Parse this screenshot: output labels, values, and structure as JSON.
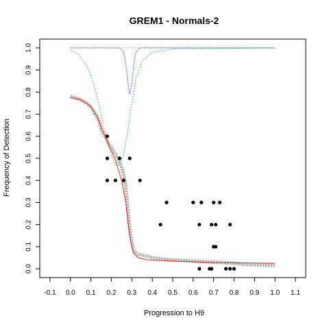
{
  "chart_data": {
    "type": "scatter",
    "title": "GREM1 - Normals-2",
    "xlabel": "Progression to H9",
    "ylabel": "Frequency of Detection",
    "xlim": [
      -0.15,
      1.15
    ],
    "ylim": [
      -0.04,
      1.04
    ],
    "x_ticks": [
      "-0.1",
      "0.0",
      "0.1",
      "0.2",
      "0.3",
      "0.4",
      "0.5",
      "0.6",
      "0.7",
      "0.8",
      "0.9",
      "1.0",
      "1.1"
    ],
    "y_ticks": [
      "0.0",
      "0.1",
      "0.2",
      "0.3",
      "0.4",
      "0.5",
      "0.6",
      "0.7",
      "0.8",
      "0.9",
      "1.0"
    ],
    "grid": false,
    "legend": "none",
    "colors": {
      "gray_band": "#b8b8b8",
      "points": "#000000",
      "fit": "#e8231f",
      "green_curve": "#2ecc40",
      "blue_curve": "#3b3bd6",
      "light_blue_curve": "#88c0e0"
    },
    "series": [
      {
        "kind": "band",
        "values": [
          [
            0.0,
            0.78
          ],
          [
            0.02,
            0.775
          ],
          [
            0.04,
            0.77
          ],
          [
            0.06,
            0.76
          ],
          [
            0.08,
            0.75
          ],
          [
            0.1,
            0.73
          ],
          [
            0.11,
            0.72
          ],
          [
            0.12,
            0.7
          ],
          [
            0.13,
            0.69
          ],
          [
            0.14,
            0.67
          ],
          [
            0.15,
            0.63
          ],
          [
            0.16,
            0.61
          ],
          [
            0.17,
            0.6
          ],
          [
            0.18,
            0.58
          ],
          [
            0.19,
            0.56
          ],
          [
            0.2,
            0.55
          ],
          [
            0.21,
            0.53
          ],
          [
            0.22,
            0.52
          ],
          [
            0.23,
            0.5
          ],
          [
            0.24,
            0.48
          ],
          [
            0.25,
            0.46
          ],
          [
            0.26,
            0.43
          ],
          [
            0.27,
            0.38
          ],
          [
            0.28,
            0.27
          ],
          [
            0.29,
            0.18
          ],
          [
            0.3,
            0.12
          ],
          [
            0.31,
            0.08
          ],
          [
            0.33,
            0.065
          ],
          [
            0.36,
            0.06
          ],
          [
            0.4,
            0.05
          ],
          [
            0.45,
            0.045
          ],
          [
            0.5,
            0.04
          ],
          [
            0.55,
            0.038
          ],
          [
            0.6,
            0.035
          ],
          [
            0.65,
            0.032
          ],
          [
            0.7,
            0.03
          ],
          [
            0.75,
            0.028
          ],
          [
            0.8,
            0.025
          ],
          [
            0.85,
            0.02
          ],
          [
            0.9,
            0.018
          ],
          [
            0.95,
            0.016
          ],
          [
            1.0,
            0.015
          ]
        ]
      },
      {
        "kind": "points",
        "values": [
          [
            0.18,
            0.6
          ],
          [
            0.18,
            0.5
          ],
          [
            0.24,
            0.5
          ],
          [
            0.29,
            0.5
          ],
          [
            0.18,
            0.4
          ],
          [
            0.22,
            0.4
          ],
          [
            0.26,
            0.4
          ],
          [
            0.34,
            0.4
          ],
          [
            0.47,
            0.3
          ],
          [
            0.6,
            0.3
          ],
          [
            0.64,
            0.3
          ],
          [
            0.7,
            0.3
          ],
          [
            0.73,
            0.3
          ],
          [
            0.44,
            0.2
          ],
          [
            0.63,
            0.2
          ],
          [
            0.69,
            0.2
          ],
          [
            0.71,
            0.2
          ],
          [
            0.78,
            0.2
          ],
          [
            0.7,
            0.1
          ],
          [
            0.71,
            0.1
          ],
          [
            0.63,
            0.0
          ],
          [
            0.68,
            0.0
          ],
          [
            0.69,
            0.0
          ],
          [
            0.76,
            0.0
          ],
          [
            0.78,
            0.0
          ],
          [
            0.8,
            0.0
          ]
        ]
      },
      {
        "kind": "fit",
        "values": [
          [
            0.0,
            0.775
          ],
          [
            0.05,
            0.765
          ],
          [
            0.1,
            0.735
          ],
          [
            0.13,
            0.69
          ],
          [
            0.16,
            0.62
          ],
          [
            0.19,
            0.555
          ],
          [
            0.22,
            0.49
          ],
          [
            0.25,
            0.4
          ],
          [
            0.27,
            0.3
          ],
          [
            0.28,
            0.22
          ],
          [
            0.29,
            0.15
          ],
          [
            0.3,
            0.1
          ],
          [
            0.31,
            0.07
          ],
          [
            0.33,
            0.05
          ],
          [
            0.38,
            0.04
          ],
          [
            0.5,
            0.035
          ],
          [
            0.7,
            0.028
          ],
          [
            1.0,
            0.025
          ]
        ]
      },
      {
        "kind": "green",
        "values": [
          [
            0.0,
            0.99
          ],
          [
            0.04,
            0.97
          ],
          [
            0.08,
            0.92
          ],
          [
            0.11,
            0.85
          ],
          [
            0.14,
            0.74
          ],
          [
            0.17,
            0.61
          ],
          [
            0.2,
            0.51
          ],
          [
            0.22,
            0.47
          ],
          [
            0.24,
            0.47
          ],
          [
            0.26,
            0.52
          ],
          [
            0.28,
            0.62
          ],
          [
            0.3,
            0.75
          ],
          [
            0.32,
            0.86
          ],
          [
            0.35,
            0.94
          ],
          [
            0.4,
            0.98
          ],
          [
            0.5,
            0.995
          ],
          [
            1.0,
            1.0
          ]
        ]
      },
      {
        "kind": "blue",
        "values": [
          [
            0.0,
            1.0
          ],
          [
            0.24,
            1.0
          ],
          [
            0.26,
            0.98
          ],
          [
            0.27,
            0.93
          ],
          [
            0.28,
            0.85
          ],
          [
            0.29,
            0.79
          ],
          [
            0.3,
            0.84
          ],
          [
            0.31,
            0.93
          ],
          [
            0.32,
            0.98
          ],
          [
            0.34,
            1.0
          ],
          [
            1.0,
            1.0
          ]
        ]
      },
      {
        "kind": "lightblue",
        "values": [
          [
            0.0,
            1.0
          ],
          [
            1.0,
            1.0
          ]
        ]
      }
    ]
  }
}
